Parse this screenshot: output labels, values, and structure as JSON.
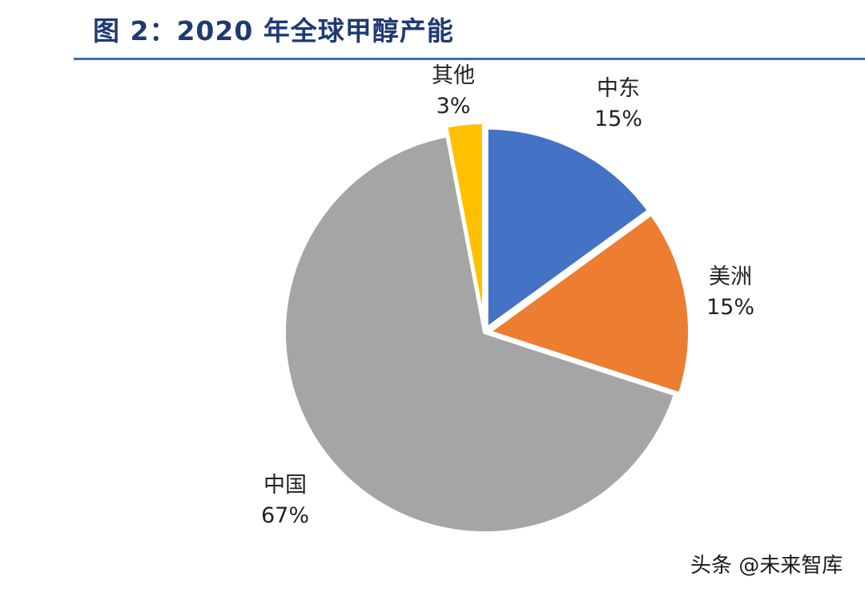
{
  "chart_data": {
    "type": "pie",
    "title": "图 2：2020 年全球甲醇产能",
    "slices": [
      {
        "label": "中东",
        "value": 15,
        "display": "15%",
        "color": "#4472c4"
      },
      {
        "label": "美洲",
        "value": 15,
        "display": "15%",
        "color": "#ed7d31"
      },
      {
        "label": "中国",
        "value": 67,
        "display": "67%",
        "color": "#a5a5a5"
      },
      {
        "label": "其他",
        "value": 3,
        "display": "3%",
        "color": "#ffc000"
      }
    ]
  },
  "watermark": {
    "text": "头条 @未来智库"
  }
}
